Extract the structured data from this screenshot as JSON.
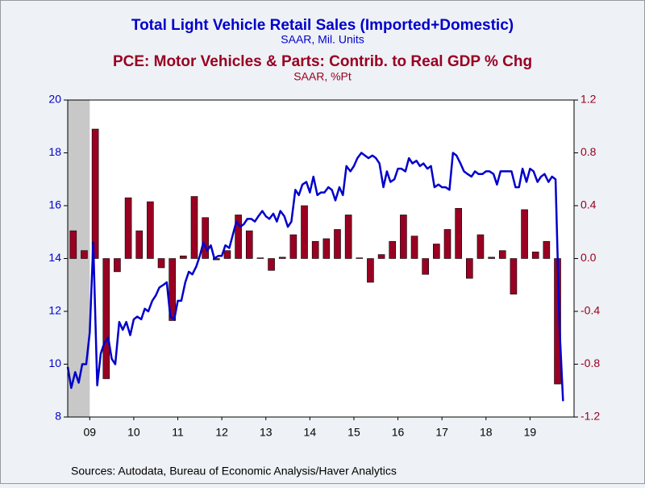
{
  "chart_data": {
    "type": "combo",
    "source": "Sources:  Autodata, Bureau of Economic Analysis/Haver Analytics",
    "xlim": [
      2009,
      2020.5
    ],
    "xticks": [
      {
        "value": 2009.5,
        "label": "09"
      },
      {
        "value": 2010.5,
        "label": "10"
      },
      {
        "value": 2011.5,
        "label": "11"
      },
      {
        "value": 2012.5,
        "label": "12"
      },
      {
        "value": 2013.5,
        "label": "13"
      },
      {
        "value": 2014.5,
        "label": "14"
      },
      {
        "value": 2015.5,
        "label": "15"
      },
      {
        "value": 2016.5,
        "label": "16"
      },
      {
        "value": 2017.5,
        "label": "17"
      },
      {
        "value": 2018.5,
        "label": "18"
      },
      {
        "value": 2019.5,
        "label": "19"
      }
    ],
    "ylim": [
      8,
      20
    ],
    "yticks": [
      8,
      10,
      12,
      14,
      16,
      18,
      20
    ],
    "y2lim": [
      -1.2,
      1.2
    ],
    "y2ticks": [
      {
        "value": -1.2,
        "label": "-1.2"
      },
      {
        "value": -0.8,
        "label": "-0.8"
      },
      {
        "value": -0.4,
        "label": "-0.4"
      },
      {
        "value": 0,
        "label": "0.0"
      },
      {
        "value": 0.4,
        "label": "0.4"
      },
      {
        "value": 0.8,
        "label": "0.8"
      },
      {
        "value": 1.2,
        "label": "1.2"
      }
    ],
    "shaded_periods": [
      [
        2009,
        2009.5
      ]
    ],
    "series": [
      {
        "name": "Total Light Vehicle Retail Sales (Imported+Domestic)",
        "units": "SAAR, Mil. Units",
        "type": "line",
        "axis": "y",
        "color": "#0000cc",
        "x": [
          2009,
          2009.08,
          2009.17,
          2009.25,
          2009.33,
          2009.42,
          2009.5,
          2009.58,
          2009.67,
          2009.75,
          2009.83,
          2009.92,
          2010,
          2010.08,
          2010.17,
          2010.25,
          2010.33,
          2010.42,
          2010.5,
          2010.58,
          2010.67,
          2010.75,
          2010.83,
          2010.92,
          2011,
          2011.08,
          2011.17,
          2011.25,
          2011.33,
          2011.42,
          2011.5,
          2011.58,
          2011.67,
          2011.75,
          2011.83,
          2011.92,
          2012,
          2012.08,
          2012.17,
          2012.25,
          2012.33,
          2012.42,
          2012.5,
          2012.58,
          2012.67,
          2012.75,
          2012.83,
          2012.92,
          2013,
          2013.08,
          2013.17,
          2013.25,
          2013.33,
          2013.42,
          2013.5,
          2013.58,
          2013.67,
          2013.75,
          2013.83,
          2013.92,
          2014,
          2014.08,
          2014.17,
          2014.25,
          2014.33,
          2014.42,
          2014.5,
          2014.58,
          2014.67,
          2014.75,
          2014.83,
          2014.92,
          2015,
          2015.08,
          2015.17,
          2015.25,
          2015.33,
          2015.42,
          2015.5,
          2015.58,
          2015.67,
          2015.75,
          2015.83,
          2015.92,
          2016,
          2016.08,
          2016.17,
          2016.25,
          2016.33,
          2016.42,
          2016.5,
          2016.58,
          2016.67,
          2016.75,
          2016.83,
          2016.92,
          2017,
          2017.08,
          2017.17,
          2017.25,
          2017.33,
          2017.42,
          2017.5,
          2017.58,
          2017.67,
          2017.75,
          2017.83,
          2017.92,
          2018,
          2018.08,
          2018.17,
          2018.25,
          2018.33,
          2018.42,
          2018.5,
          2018.58,
          2018.67,
          2018.75,
          2018.83,
          2018.92,
          2019,
          2019.08,
          2019.17,
          2019.25,
          2019.33,
          2019.42,
          2019.5,
          2019.58,
          2019.67,
          2019.75,
          2019.83,
          2019.92,
          2020,
          2020.08,
          2020.17,
          2020.25
        ],
        "values": [
          9.9,
          9.1,
          9.7,
          9.3,
          10.0,
          10.0,
          11.2,
          14.6,
          9.2,
          10.4,
          10.8,
          11.0,
          10.2,
          10.0,
          11.6,
          11.3,
          11.6,
          11.1,
          11.7,
          11.8,
          11.7,
          12.1,
          12.0,
          12.4,
          12.6,
          12.9,
          13.0,
          13.1,
          11.8,
          11.7,
          12.4,
          12.4,
          13.1,
          13.5,
          13.4,
          13.7,
          14.1,
          14.6,
          14.3,
          14.5,
          14.0,
          14.1,
          14.1,
          14.5,
          14.4,
          14.9,
          15.4,
          15.2,
          15.3,
          15.5,
          15.5,
          15.4,
          15.6,
          15.8,
          15.6,
          15.5,
          15.7,
          15.4,
          15.8,
          15.6,
          15.2,
          15.4,
          16.6,
          16.4,
          16.8,
          16.9,
          16.5,
          17.1,
          16.4,
          16.5,
          16.5,
          16.7,
          16.6,
          16.2,
          16.7,
          16.4,
          17.5,
          17.3,
          17.5,
          17.8,
          18.0,
          17.9,
          17.8,
          17.9,
          17.8,
          17.6,
          16.7,
          17.3,
          16.9,
          17.0,
          17.4,
          17.4,
          17.3,
          17.8,
          17.6,
          17.7,
          17.5,
          17.6,
          17.4,
          17.5,
          16.7,
          16.8,
          16.7,
          16.7,
          16.6,
          18.0,
          17.9,
          17.6,
          17.3,
          17.2,
          17.1,
          17.3,
          17.2,
          17.2,
          17.3,
          17.3,
          17.2,
          16.8,
          17.3,
          17.3,
          17.3,
          17.3,
          16.7,
          16.7,
          17.4,
          16.9,
          17.4,
          17.3,
          16.9,
          17.1,
          17.2,
          16.9,
          17.1,
          17.0,
          11.4,
          8.6
        ]
      },
      {
        "name": "PCE: Motor Vehicles & Parts: Contrib. to Real GDP % Chg",
        "units": "SAAR, %Pt",
        "type": "bar",
        "axis": "y2",
        "color": "#990022",
        "x": [
          2009.125,
          2009.375,
          2009.625,
          2009.875,
          2010.125,
          2010.375,
          2010.625,
          2010.875,
          2011.125,
          2011.375,
          2011.625,
          2011.875,
          2012.125,
          2012.375,
          2012.625,
          2012.875,
          2013.125,
          2013.375,
          2013.625,
          2013.875,
          2014.125,
          2014.375,
          2014.625,
          2014.875,
          2015.125,
          2015.375,
          2015.625,
          2015.875,
          2016.125,
          2016.375,
          2016.625,
          2016.875,
          2017.125,
          2017.375,
          2017.625,
          2017.875,
          2018.125,
          2018.375,
          2018.625,
          2018.875,
          2019.125,
          2019.375,
          2019.625,
          2019.875,
          2020.125
        ],
        "values": [
          0.21,
          0.06,
          0.98,
          -0.91,
          -0.1,
          0.46,
          0.21,
          0.43,
          -0.07,
          -0.47,
          0.02,
          0.47,
          0.31,
          -0.01,
          0.06,
          0.33,
          0.21,
          0.005,
          -0.09,
          0.01,
          0.18,
          0.4,
          0.13,
          0.15,
          0.22,
          0.33,
          0.005,
          -0.18,
          0.03,
          0.13,
          0.33,
          0.17,
          -0.12,
          0.11,
          0.22,
          0.38,
          -0.15,
          0.18,
          0.01,
          0.06,
          -0.27,
          0.37,
          0.05,
          0.13,
          -0.95
        ]
      }
    ]
  }
}
